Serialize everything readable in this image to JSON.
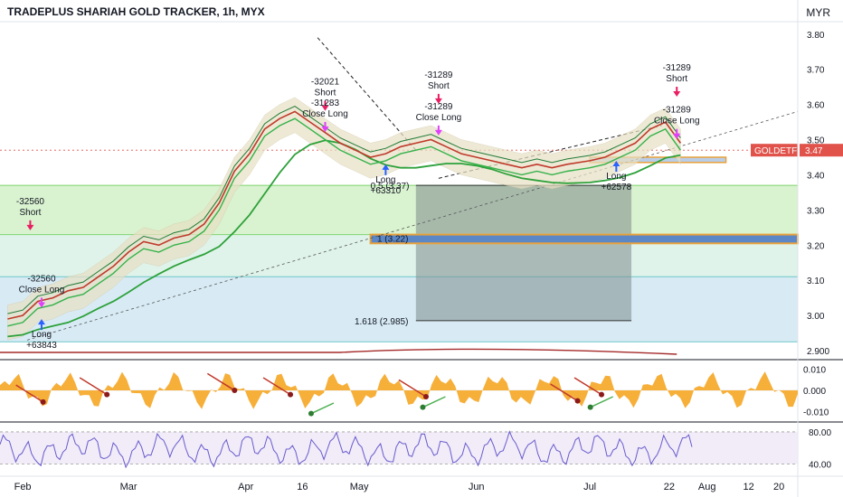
{
  "header": {
    "title": "TRADEPLUS SHARIAH GOLD TRACKER, 1h, MYX",
    "currency": "MYR"
  },
  "chart_data": {
    "type": "line",
    "symbol": "GOLDETF",
    "last_price": "3.47",
    "price_axis": {
      "ylim": [
        2.9,
        3.82
      ],
      "ticks": [
        "3.80",
        "3.70",
        "3.60",
        "3.50",
        "3.40",
        "3.30",
        "3.20",
        "3.10",
        "3.00",
        "2.900"
      ]
    },
    "volume_osc_axis": {
      "ticks": [
        "0.010",
        "0.000",
        "-0.010"
      ],
      "ylim": [
        -0.012,
        0.012
      ]
    },
    "rsi_axis": {
      "ticks": [
        "80.00",
        "40.00"
      ],
      "ylim": [
        25,
        90
      ]
    },
    "time_axis": {
      "ticks": [
        "Feb",
        "Mar",
        "Apr",
        "16",
        "May",
        "Jun",
        "Jul",
        "22",
        "Aug",
        "12",
        "20"
      ]
    },
    "fib_levels": [
      {
        "label": "1 (3.22)",
        "value": 3.22
      },
      {
        "label": "1.618 (2.985)",
        "value": 2.985
      },
      {
        "label": "0.5 (3.37)",
        "value": 3.37
      }
    ],
    "signals": [
      {
        "side": "Short",
        "qty": "-32560",
        "price": 3.26,
        "time": "Feb 3"
      },
      {
        "side": "Close Long",
        "qty": "-32560",
        "price": 3.04,
        "time": "Feb 6"
      },
      {
        "side": "Long",
        "qty": "+63843",
        "price": 3.0,
        "time": "Feb 6"
      },
      {
        "side": "Short",
        "qty": "-32021",
        "price": 3.6,
        "time": "Apr 22"
      },
      {
        "side": "Close Long",
        "qty": "-31283",
        "price": 3.54,
        "time": "Apr 22"
      },
      {
        "side": "Long",
        "qty": "+63310",
        "price": 3.44,
        "time": "May 8"
      },
      {
        "side": "Short",
        "qty": "-31289",
        "price": 3.62,
        "time": "May 22"
      },
      {
        "side": "Close Long",
        "qty": "-31289",
        "price": 3.53,
        "time": "May 22"
      },
      {
        "side": "Long",
        "qty": "+62578",
        "price": 3.45,
        "time": "Jul 8"
      },
      {
        "side": "Short",
        "qty": "-31289",
        "price": 3.64,
        "time": "Jul 24"
      },
      {
        "side": "Close Long",
        "qty": "-31289",
        "price": 3.52,
        "time": "Jul 24"
      }
    ],
    "price_series": [
      [
        "Jan 28",
        2.99
      ],
      [
        "Feb 1",
        3.0
      ],
      [
        "Feb 5",
        3.04
      ],
      [
        "Feb 9",
        3.05
      ],
      [
        "Feb 13",
        3.07
      ],
      [
        "Feb 17",
        3.08
      ],
      [
        "Feb 21",
        3.11
      ],
      [
        "Feb 25",
        3.14
      ],
      [
        "Mar 1",
        3.18
      ],
      [
        "Mar 5",
        3.21
      ],
      [
        "Mar 9",
        3.2
      ],
      [
        "Mar 13",
        3.22
      ],
      [
        "Mar 17",
        3.23
      ],
      [
        "Mar 21",
        3.26
      ],
      [
        "Mar 25",
        3.32
      ],
      [
        "Mar 29",
        3.41
      ],
      [
        "Apr 2",
        3.46
      ],
      [
        "Apr 6",
        3.53
      ],
      [
        "Apr 10",
        3.56
      ],
      [
        "Apr 14",
        3.58
      ],
      [
        "Apr 18",
        3.55
      ],
      [
        "Apr 22",
        3.52
      ],
      [
        "Apr 26",
        3.49
      ],
      [
        "Apr 30",
        3.47
      ],
      [
        "May 4",
        3.45
      ],
      [
        "May 8",
        3.46
      ],
      [
        "May 12",
        3.48
      ],
      [
        "May 16",
        3.49
      ],
      [
        "May 20",
        3.5
      ],
      [
        "May 24",
        3.48
      ],
      [
        "May 28",
        3.46
      ],
      [
        "Jun 1",
        3.45
      ],
      [
        "Jun 5",
        3.44
      ],
      [
        "Jun 9",
        3.43
      ],
      [
        "Jun 13",
        3.42
      ],
      [
        "Jun 17",
        3.43
      ],
      [
        "Jun 21",
        3.42
      ],
      [
        "Jun 25",
        3.43
      ],
      [
        "Jul 1",
        3.44
      ],
      [
        "Jul 5",
        3.45
      ],
      [
        "Jul 9",
        3.47
      ],
      [
        "Jul 13",
        3.49
      ],
      [
        "Jul 17",
        3.53
      ],
      [
        "Jul 21",
        3.55
      ],
      [
        "Jul 25",
        3.49
      ]
    ]
  }
}
